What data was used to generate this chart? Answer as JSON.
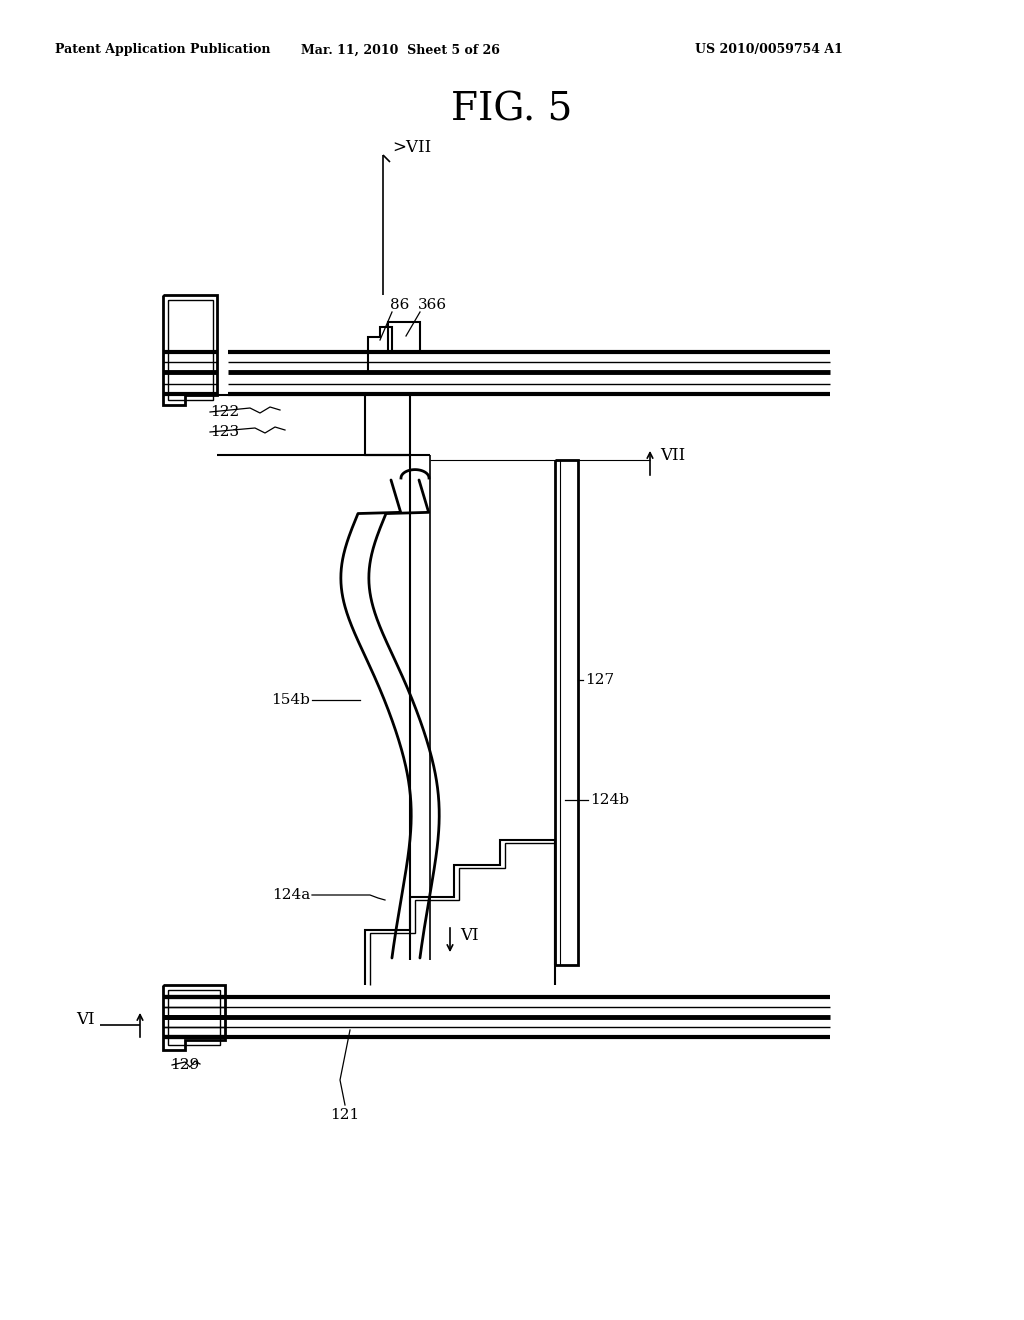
{
  "title": "FIG. 5",
  "header_left": "Patent Application Publication",
  "header_mid": "Mar. 11, 2010  Sheet 5 of 26",
  "header_right": "US 2010/0059754 A1",
  "bg": "#ffffff",
  "lc": "#000000"
}
